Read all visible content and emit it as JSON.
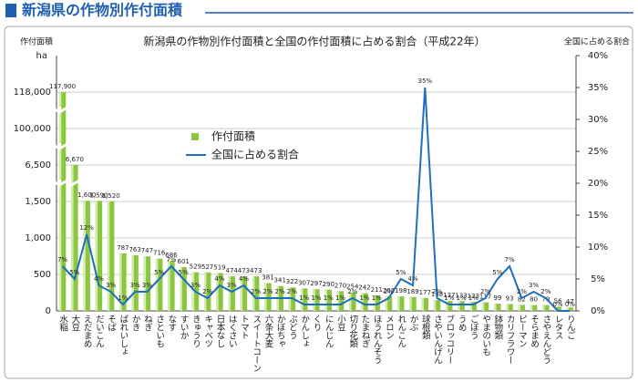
{
  "header": "新潟県の作物別作付面積",
  "chart_data": {
    "type": "bar_line",
    "title": "新潟県の作物別作付面積と全国の作付面積に占める割合（平成22年）",
    "y_label": "作付面積",
    "y_unit": "ha",
    "y2_label": "全国に占める割合",
    "categories": [
      "水稲",
      "大豆",
      "えだまめ",
      "だいこん",
      "そば",
      "ばれいしょ",
      "かき",
      "ねぎ",
      "さといも",
      "なす",
      "すいか",
      "きゅうり",
      "キャベツ",
      "日本なし",
      "はくさい",
      "トマト",
      "スイートコーン",
      "六条大麦",
      "かぼちゃ",
      "ぶどう",
      "かんしょ",
      "くり",
      "にんじん",
      "小豆",
      "切り花類",
      "たまねぎ",
      "ほうれんそう",
      "メロン",
      "れんこん",
      "かぶ",
      "球根類",
      "さやいんげん",
      "ブロッコリー",
      "うめ",
      "ごぼう",
      "やまのいも",
      "鉢物類",
      "カリフラワー",
      "ピーマン",
      "そらまめ",
      "さやえんどう",
      "レタス",
      "りんご"
    ],
    "series": [
      {
        "name": "作付面積",
        "color": "#8cc63f",
        "values": [
          117900,
          6670,
          1600,
          1590,
          1520,
          787,
          763,
          747,
          716,
          686,
          601,
          529,
          527,
          519,
          474,
          473,
          473,
          381,
          341,
          322,
          307,
          297,
          290,
          270,
          254,
          242,
          211,
          201,
          198,
          189,
          177,
          148,
          137,
          133,
          123,
          117,
          99,
          93,
          82,
          80,
          79,
          56,
          47
        ],
        "value_labels": [
          "117,900",
          "6,670",
          "1,600",
          "1,590",
          "1,520",
          "787",
          "763",
          "747",
          "716",
          "686",
          "601",
          "529",
          "527",
          "519",
          "474",
          "473",
          "473",
          "381",
          "341",
          "322",
          "307",
          "297",
          "290",
          "270",
          "254",
          "242",
          "211",
          "201",
          "198",
          "189",
          "177",
          "148",
          "137",
          "133",
          "123",
          "117",
          "99",
          "93",
          "82",
          "80",
          "79",
          "56",
          "47"
        ]
      },
      {
        "name": "全国に占める割合",
        "color": "#1f6fbf",
        "axis": "y2",
        "values": [
          7,
          5,
          12,
          4,
          3,
          1,
          3,
          3,
          5,
          7,
          5,
          3,
          2,
          4,
          3,
          4,
          2,
          2,
          2,
          2,
          1,
          1,
          1,
          1,
          2,
          1,
          1,
          2,
          5,
          4,
          35,
          2,
          1,
          1,
          1,
          2,
          5,
          7,
          2,
          3,
          2,
          0,
          0
        ],
        "value_labels": [
          "7%",
          "5%",
          "12%",
          "4%",
          "3%",
          "1%",
          "3%",
          "3%",
          "5%",
          "7%",
          "5%",
          "3%",
          "2%",
          "4%",
          "3%",
          "4%",
          "2%",
          "2%",
          "2%",
          "2%",
          "1%",
          "1%",
          "1%",
          "1%",
          "2%",
          "1%",
          "1%",
          "2%",
          "5%",
          "4%",
          "35%",
          "2%",
          "1%",
          "1%",
          "1%",
          "2%",
          "5%",
          "7%",
          "2%",
          "3%",
          "2%",
          "0%",
          "0%"
        ]
      }
    ],
    "ylim": [
      0,
      118000
    ],
    "yticks": [
      0,
      500,
      {
        "value": 1000,
        "label": "1,000"
      },
      {
        "value": 1500,
        "label": "1,500"
      },
      {
        "value": 6500,
        "label": "6,500"
      },
      {
        "value": 100000,
        "label": "100,000"
      },
      {
        "value": 118000,
        "label": "118,000"
      }
    ],
    "y_axis_breaks": true,
    "y2lim": [
      0,
      40
    ],
    "y2ticks": [
      {
        "value": 0,
        "label": "0%"
      },
      {
        "value": 5,
        "label": "5%"
      },
      {
        "value": 10,
        "label": "10%"
      },
      {
        "value": 15,
        "label": "15%"
      },
      {
        "value": 20,
        "label": "20%"
      },
      {
        "value": 25,
        "label": "25%"
      },
      {
        "value": 30,
        "label": "30%"
      },
      {
        "value": 35,
        "label": "35%"
      },
      {
        "value": 40,
        "label": "40%"
      }
    ],
    "grid": true,
    "legend": "upper-left"
  }
}
